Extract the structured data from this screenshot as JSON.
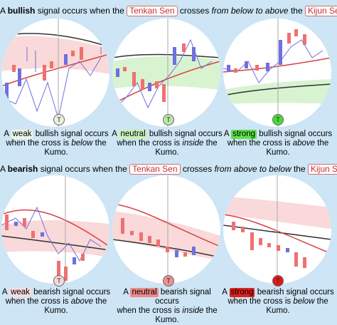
{
  "bullish": {
    "prefix": "A",
    "word": "bullish",
    "mid1": "signal occurs when the",
    "tenkan": "Tenkan Sen",
    "mid2": "crosses",
    "direction": "from below to above",
    "mid3": "the",
    "kijun": "Kijun Sen",
    "panels": [
      {
        "a": "A",
        "strength": "weak",
        "rest1": "bullish signal occurs",
        "line2a": "when the cross is",
        "line2b": "below",
        "line2c": "the",
        "line3": "Kumo.",
        "chip_color": "#eef6e8",
        "t_color": "#e8f0e0"
      },
      {
        "a": "A",
        "strength": "neutral",
        "rest1": "bullish signal occurs",
        "line2a": "when the cross is",
        "line2b": "inside",
        "line2c": "the",
        "line3": "Kumo.",
        "chip_color": "#c9f0b8",
        "t_color": "#b9e8a8"
      },
      {
        "a": "A",
        "strength": "strong",
        "rest1": "bullish signal occurs",
        "line2a": "when the cross is",
        "line2b": "above",
        "line2c": "the",
        "line3": "Kumo.",
        "chip_color": "#5ee04a",
        "t_color": "#4ad83a"
      }
    ]
  },
  "bearish": {
    "prefix": "A",
    "word": "bearish",
    "mid1": "signal occurs when the",
    "tenkan": "Tenkan Sen",
    "mid2": "crosses",
    "direction": "from above to below",
    "mid3": "the",
    "kijun": "Kijun Sen",
    "panels": [
      {
        "a": "A",
        "strength": "weak",
        "rest1": "bearish signal occurs",
        "line2a": "when the cross is",
        "line2b": "above",
        "line2c": "the",
        "line3": "Kumo.",
        "chip_color": "#f6dcdc",
        "t_color": "#f4d8d8"
      },
      {
        "a": "A",
        "strength": "neutral",
        "rest1": "bearish signal occurs",
        "line2a": "when the cross is",
        "line2b": "inside",
        "line2c": "the",
        "line3": "Kumo.",
        "chip_color": "#f08a8a",
        "t_color": "#ee9090"
      },
      {
        "a": "A",
        "strength": "strong",
        "rest1": "bearish signal occurs",
        "line2a": "when the cross is",
        "line2b": "below",
        "line2c": "the",
        "line3": "Kumo.",
        "chip_color": "#e02020",
        "t_color": "#e01818"
      }
    ]
  },
  "t_label": "T",
  "colors": {
    "background": "#cde5f5",
    "bull_candle": "#6f6fe0",
    "bear_candle": "#f07070",
    "tenkan": "#d94040",
    "kijun": "#333333",
    "kumo": "#f9d9d9",
    "kumo_green": "#d8f3d0"
  }
}
